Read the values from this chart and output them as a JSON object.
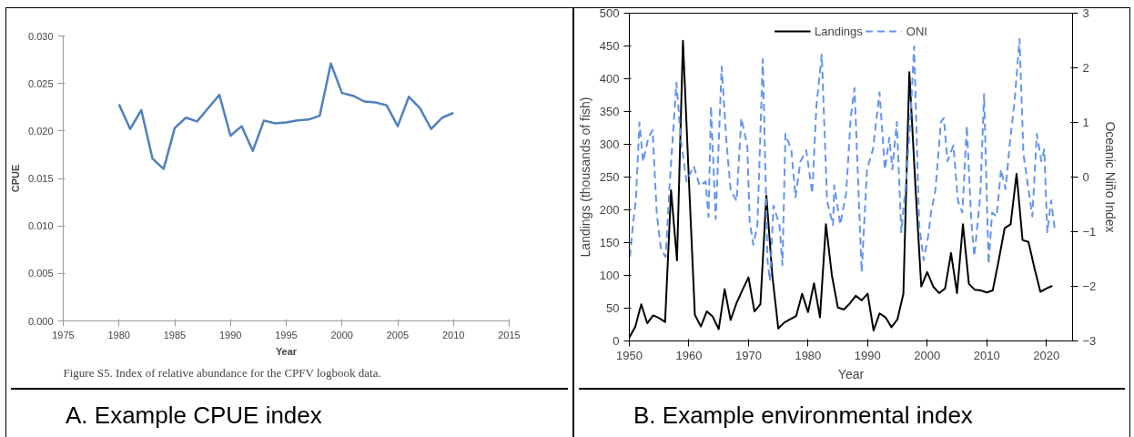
{
  "chart_data": [
    {
      "type": "line",
      "xlabel": "Year",
      "ylabel": "CPUE",
      "x": [
        1980,
        1981,
        1982,
        1983,
        1984,
        1985,
        1986,
        1987,
        1988,
        1989,
        1990,
        1991,
        1992,
        1993,
        1994,
        1995,
        1996,
        1997,
        1998,
        1999,
        2000,
        2001,
        2002,
        2003,
        2004,
        2005,
        2006,
        2007,
        2008,
        2009,
        2010
      ],
      "series": [
        {
          "color": "#4f81bd",
          "values": [
            0.0228,
            0.0202,
            0.0222,
            0.0171,
            0.016,
            0.0203,
            0.0214,
            0.021,
            0.0224,
            0.0238,
            0.0195,
            0.0205,
            0.0179,
            0.0211,
            0.0208,
            0.0209,
            0.0211,
            0.0212,
            0.0216,
            0.0271,
            0.024,
            0.0237,
            0.0231,
            0.023,
            0.0227,
            0.0205,
            0.0236,
            0.0224,
            0.0202,
            0.0214,
            0.0219
          ]
        }
      ],
      "xlim": [
        1975,
        2015
      ],
      "xticks": [
        1975,
        1980,
        1985,
        1990,
        1995,
        2000,
        2005,
        2010,
        2015
      ],
      "ylim": [
        0,
        0.03
      ],
      "yticks": [
        {
          "value": 0,
          "label": "0.000"
        },
        {
          "value": 0.005,
          "label": "0.005"
        },
        {
          "value": 0.01,
          "label": "0.010"
        },
        {
          "value": 0.015,
          "label": "0.015"
        },
        {
          "value": 0.02,
          "label": "0.020"
        },
        {
          "value": 0.025,
          "label": "0.025"
        },
        {
          "value": 0.03,
          "label": "0.030"
        }
      ],
      "grid": false,
      "legend": false,
      "line_style": "solid",
      "annotations": [
        "Figure S5. Index of relative abundance for the CPFV logbook data.",
        "A.  Example CPUE index"
      ]
    },
    {
      "type": "line",
      "xlabel": "Year",
      "ylabel": "Landings (thousands of fish)",
      "y2label": "Oceanic Niño Index",
      "series": [
        {
          "name": "Landings",
          "color": "#000000",
          "line_style": "solid",
          "x": [
            1950,
            1951,
            1952,
            1953,
            1954,
            1955,
            1956,
            1957,
            1958,
            1959,
            1960,
            1961,
            1962,
            1963,
            1964,
            1965,
            1966,
            1967,
            1968,
            1969,
            1970,
            1971,
            1972,
            1973,
            1974,
            1975,
            1976,
            1977,
            1978,
            1979,
            1980,
            1981,
            1982,
            1983,
            1984,
            1985,
            1986,
            1987,
            1988,
            1989,
            1990,
            1991,
            1992,
            1993,
            1994,
            1995,
            1996,
            1997,
            1998,
            1999,
            2000,
            2001,
            2002,
            2003,
            2004,
            2005,
            2006,
            2007,
            2008,
            2009,
            2010,
            2011,
            2012,
            2013,
            2014,
            2015,
            2016,
            2017,
            2018,
            2019,
            2020,
            2021
          ],
          "values": [
            5,
            22,
            56,
            27,
            39,
            35,
            29,
            230,
            123,
            458,
            245,
            40,
            22,
            45,
            37,
            18,
            79,
            32,
            58,
            78,
            97,
            45,
            56,
            222,
            100,
            19,
            28,
            33,
            38,
            72,
            44,
            88,
            36,
            178,
            100,
            51,
            48,
            57,
            69,
            62,
            72,
            16,
            42,
            36,
            21,
            33,
            72,
            410,
            240,
            83,
            105,
            83,
            73,
            80,
            134,
            73,
            178,
            87,
            78,
            77,
            74,
            77,
            123,
            172,
            178,
            255,
            154,
            151,
            111,
            75,
            80,
            84
          ]
        },
        {
          "name": "ONI",
          "color": "#6495ed",
          "line_style": "dashed",
          "axis": "y2",
          "x": [
            1950.1,
            1950.6,
            1951.1,
            1951.7,
            1952.3,
            1953.2,
            1953.9,
            1954.6,
            1955.3,
            1956.1,
            1956.8,
            1957.9,
            1958.7,
            1959.6,
            1960.8,
            1961.8,
            1962.8,
            1963.3,
            1963.7,
            1964.5,
            1965.5,
            1966.3,
            1967.0,
            1968.0,
            1968.8,
            1969.8,
            1970.2,
            1970.8,
            1971.5,
            1972.4,
            1973.2,
            1973.6,
            1974.2,
            1975.2,
            1975.7,
            1976.2,
            1977.2,
            1977.9,
            1978.7,
            1979.7,
            1980.7,
            1981.4,
            1982.3,
            1983.2,
            1984.2,
            1984.4,
            1985.4,
            1986.4,
            1987.15,
            1987.8,
            1988.4,
            1989.0,
            1989.9,
            1990.9,
            1992.0,
            1992.9,
            1993.65,
            1994.15,
            1994.9,
            1995.65,
            1996.4,
            1997.15,
            1997.8,
            1998.65,
            1999.4,
            2000.15,
            2000.65,
            2001.4,
            2002.3,
            2002.8,
            2003.4,
            2004.4,
            2005.15,
            2005.9,
            2006.65,
            2007.4,
            2007.9,
            2008.9,
            2009.55,
            2010.3,
            2010.9,
            2011.65,
            2012.4,
            2013.15,
            2013.9,
            2014.65,
            2015.5,
            2016.15,
            2016.9,
            2017.65,
            2018.4,
            2019.15,
            2019.65,
            2020.15,
            2020.8,
            2021.4
          ],
          "values": [
            -1.46,
            -0.88,
            -0.41,
            1.0,
            0.28,
            0.72,
            0.86,
            -0.66,
            -1.32,
            -1.46,
            -0.08,
            1.73,
            0.64,
            -0.08,
            0.2,
            -0.16,
            -0.08,
            -0.73,
            1.3,
            -0.77,
            2.02,
            0.64,
            -0.23,
            -0.44,
            1.08,
            0.57,
            -0.81,
            -1.24,
            -0.88,
            2.16,
            -1.54,
            -1.9,
            -0.52,
            -0.88,
            -1.61,
            0.79,
            0.49,
            -0.37,
            0.28,
            0.49,
            -0.3,
            1.3,
            2.24,
            -0.44,
            -0.88,
            -0.15,
            -0.87,
            -0.29,
            1.08,
            1.63,
            -0.07,
            -1.74,
            0.14,
            0.51,
            1.55,
            0.14,
            0.72,
            0.14,
            1.01,
            -1.01,
            -0.15,
            1.01,
            2.39,
            -0.87,
            -1.52,
            -1.09,
            -0.65,
            -0.22,
            1.01,
            1.08,
            0.29,
            0.58,
            -0.43,
            -0.65,
            0.94,
            -0.8,
            -1.45,
            -0.36,
            1.52,
            -1.59,
            -0.65,
            -0.72,
            0.14,
            -0.22,
            0.65,
            1.37,
            2.53,
            0.43,
            -0.15,
            -0.72,
            0.79,
            0.29,
            0.51,
            -1.01,
            -0.43,
            -0.94
          ]
        }
      ],
      "xlim": [
        1950,
        2024.4
      ],
      "xticks": [
        1950,
        1960,
        1970,
        1980,
        1990,
        2000,
        2010,
        2020
      ],
      "ylim": [
        0,
        500
      ],
      "yticks": [
        0,
        50,
        100,
        150,
        200,
        250,
        300,
        350,
        400,
        450,
        500
      ],
      "y2lim": [
        -3,
        3
      ],
      "y2ticks": [
        -3,
        -2,
        -1,
        0,
        1,
        2,
        3
      ],
      "grid": false,
      "legend": "top",
      "annotations": [
        "B.  Example environmental index"
      ]
    }
  ]
}
